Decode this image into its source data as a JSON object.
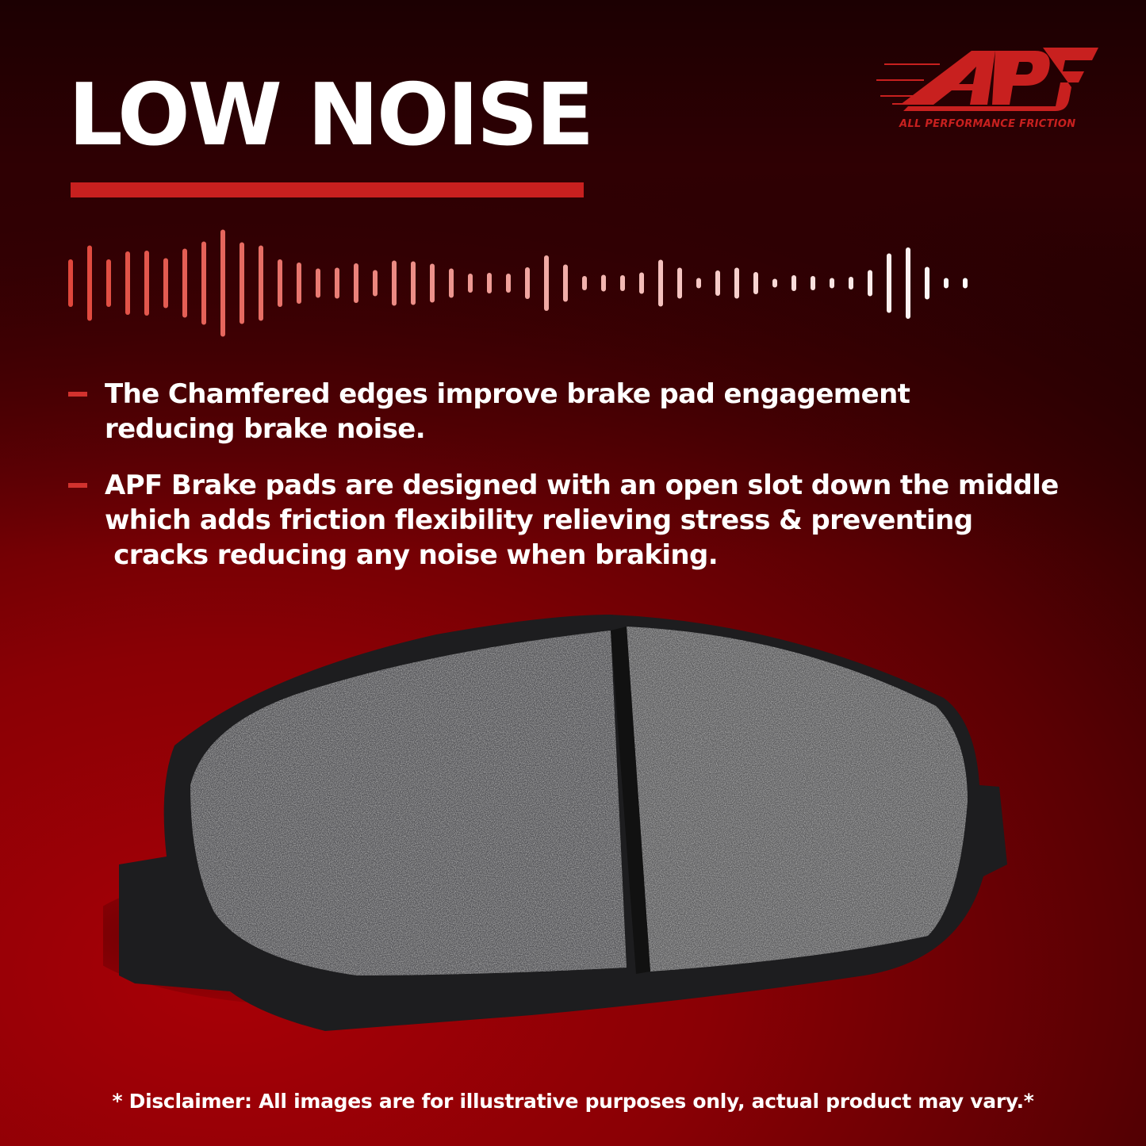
{
  "header": {
    "title": "LOW NOISE"
  },
  "logo": {
    "wordmark": "APF",
    "tagline": "ALL PERFORMANCE FRICTION",
    "color": "#c8201f"
  },
  "waveform": {
    "icon": "sound-wave-icon",
    "start_color": "#e0473c",
    "end_color": "#ffffff"
  },
  "bullets": [
    {
      "lines": [
        "The Chamfered edges improve brake pad engagement",
        "reducing brake noise."
      ]
    },
    {
      "lines": [
        "APF Brake pads are designed with an open slot down the middle",
        "which adds friction flexibility relieving stress & preventing",
        " cracks reducing any noise when braking."
      ]
    }
  ],
  "product": {
    "image": "brake-pad"
  },
  "footer": {
    "disclaimer": "* Disclaimer: All images are for illustrative purposes only, actual product may vary.*"
  },
  "colors": {
    "accent": "#c8201f",
    "background": "#8a0005"
  }
}
